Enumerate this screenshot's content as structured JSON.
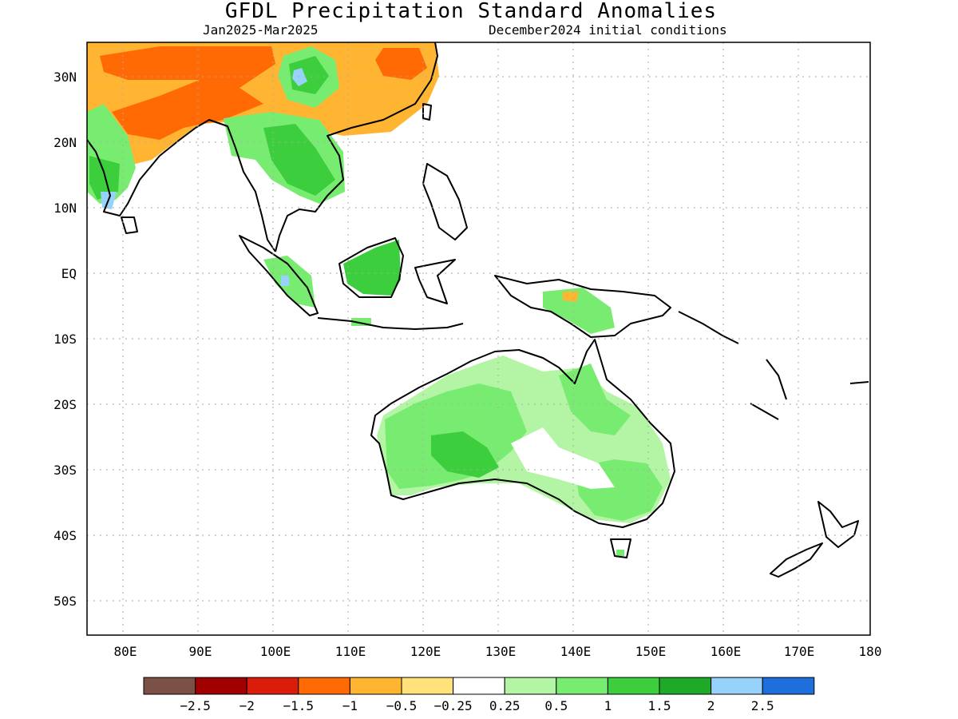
{
  "title": "GFDL Precipitation Standard Anomalies",
  "period": "Jan2025-Mar2025",
  "initial_conditions": "December2024 initial conditions",
  "lon_labels": [
    "80E",
    "90E",
    "100E",
    "110E",
    "120E",
    "130E",
    "140E",
    "150E",
    "160E",
    "170E",
    "180"
  ],
  "lat_labels": [
    "30N",
    "20N",
    "10N",
    "EQ",
    "10S",
    "20S",
    "30S",
    "40S",
    "50S"
  ],
  "legend": {
    "colors": [
      "#7a5144",
      "#a00000",
      "#dc1c0a",
      "#ff6a05",
      "#ffb432",
      "#ffe27a",
      "#ffffff",
      "#b4f5a5",
      "#78ec70",
      "#3cce3c",
      "#1eaa28",
      "#96d2fa",
      "#1e6edc"
    ],
    "labels": [
      "-2.5",
      "-2",
      "-1.5",
      "-1",
      "-0.5",
      "-0.25",
      "0.25",
      "0.5",
      "1",
      "1.5",
      "2",
      "2.5"
    ]
  }
}
